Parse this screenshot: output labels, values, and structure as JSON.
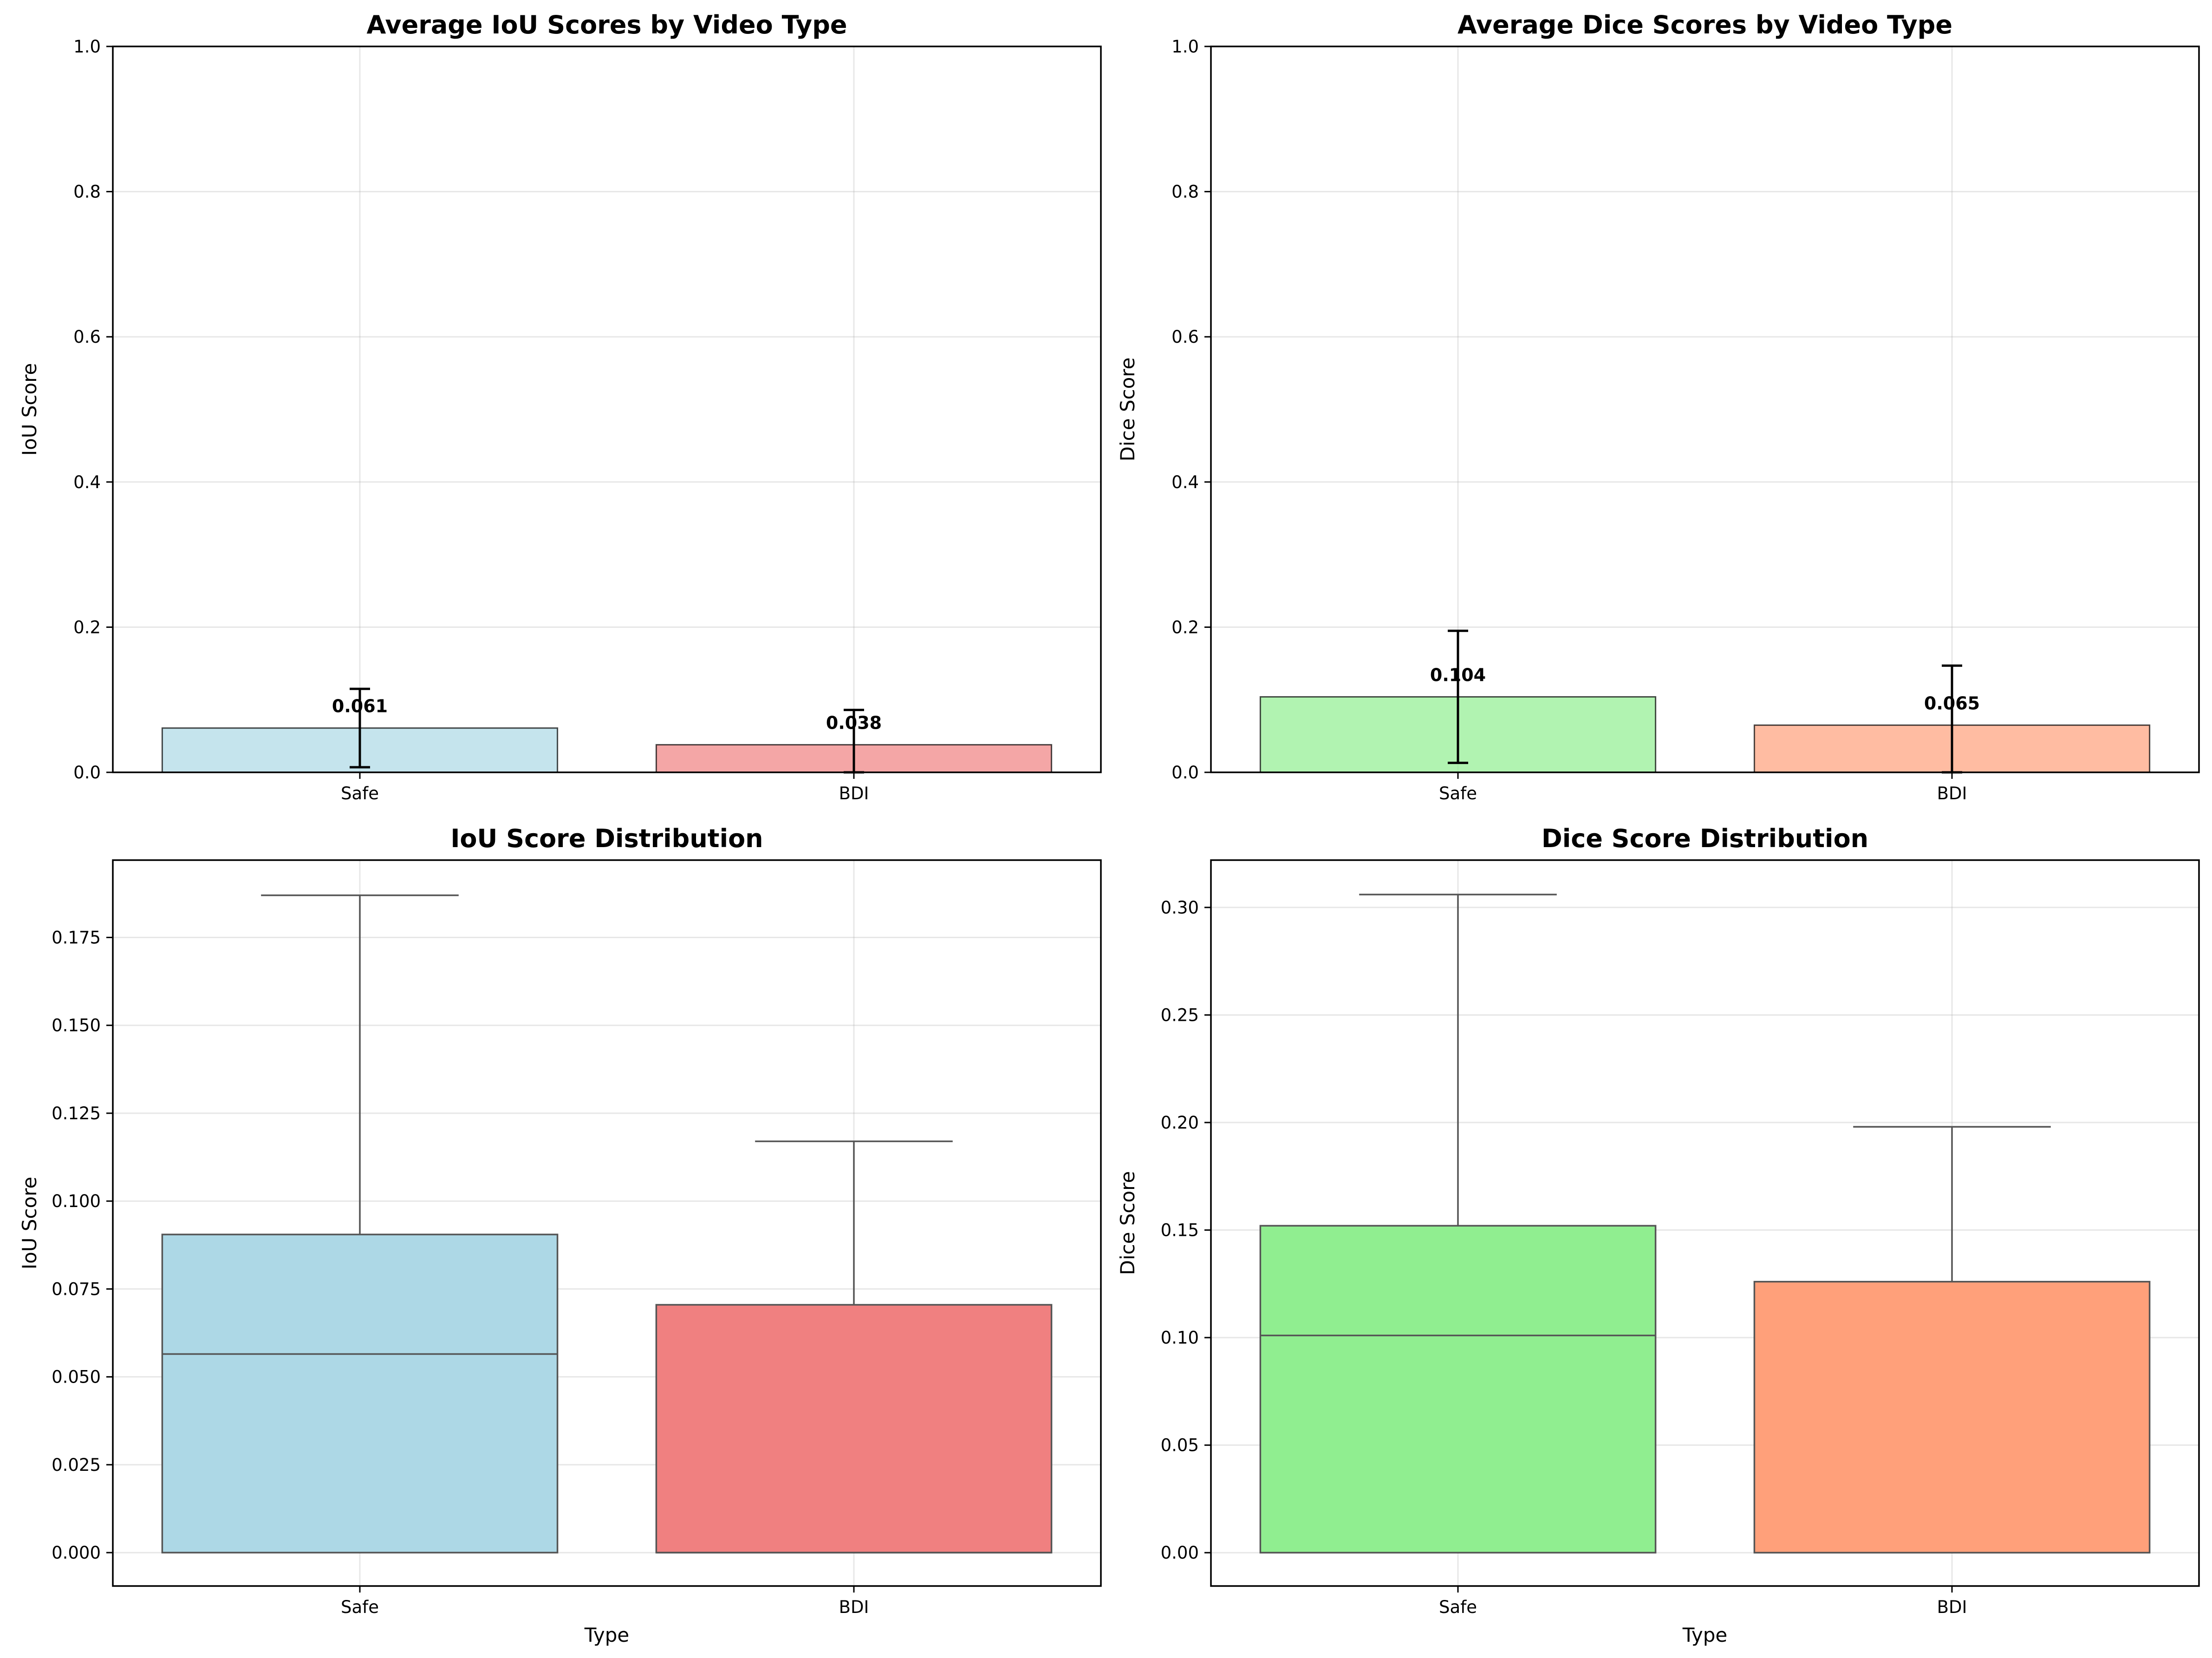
{
  "chart_data": [
    {
      "type": "bar",
      "title": "Average IoU Scores by Video Type",
      "xlabel": "",
      "ylabel": "IoU Score",
      "categories": [
        "Safe",
        "BDI"
      ],
      "values": [
        0.061,
        0.038
      ],
      "value_labels": [
        "0.061",
        "0.038"
      ],
      "error": [
        0.054,
        0.048
      ],
      "colors": [
        "#add8e6",
        "#f08080"
      ],
      "ylim": [
        0,
        1.0
      ],
      "yticks": [
        0.0,
        0.2,
        0.4,
        0.6,
        0.8,
        1.0
      ],
      "ytick_labels": [
        "0.0",
        "0.2",
        "0.4",
        "0.6",
        "0.8",
        "1.0"
      ],
      "grid": true
    },
    {
      "type": "bar",
      "title": "Average Dice Scores by Video Type",
      "xlabel": "",
      "ylabel": "Dice Score",
      "categories": [
        "Safe",
        "BDI"
      ],
      "values": [
        0.104,
        0.065
      ],
      "value_labels": [
        "0.104",
        "0.065"
      ],
      "error": [
        0.091,
        0.082
      ],
      "colors": [
        "#90ee90",
        "#ffa07a"
      ],
      "ylim": [
        0,
        1.0
      ],
      "yticks": [
        0.0,
        0.2,
        0.4,
        0.6,
        0.8,
        1.0
      ],
      "ytick_labels": [
        "0.0",
        "0.2",
        "0.4",
        "0.6",
        "0.8",
        "1.0"
      ],
      "grid": true
    },
    {
      "type": "box",
      "title": "IoU Score Distribution",
      "xlabel": "Type",
      "ylabel": "IoU Score",
      "categories": [
        "Safe",
        "BDI"
      ],
      "boxes": [
        {
          "min": 0.0,
          "q1": 0.0,
          "median": 0.0565,
          "q3": 0.0905,
          "max": 0.187
        },
        {
          "min": 0.0,
          "q1": 0.0,
          "median": 0.0,
          "q3": 0.0705,
          "max": 0.117
        }
      ],
      "colors": [
        "#add8e6",
        "#f08080"
      ],
      "ylim": [
        -0.0095,
        0.197
      ],
      "yticks": [
        0.0,
        0.025,
        0.05,
        0.075,
        0.1,
        0.125,
        0.15,
        0.175
      ],
      "ytick_labels": [
        "0.000",
        "0.025",
        "0.050",
        "0.075",
        "0.100",
        "0.125",
        "0.150",
        "0.175"
      ],
      "grid": true
    },
    {
      "type": "box",
      "title": "Dice Score Distribution",
      "xlabel": "Type",
      "ylabel": "Dice Score",
      "categories": [
        "Safe",
        "BDI"
      ],
      "boxes": [
        {
          "min": 0.0,
          "q1": 0.0,
          "median": 0.101,
          "q3": 0.152,
          "max": 0.306
        },
        {
          "min": 0.0,
          "q1": 0.0,
          "median": 0.0,
          "q3": 0.126,
          "max": 0.198
        }
      ],
      "colors": [
        "#90ee90",
        "#ffa07a"
      ],
      "ylim": [
        -0.0155,
        0.322
      ],
      "yticks": [
        0.0,
        0.05,
        0.1,
        0.15,
        0.2,
        0.25,
        0.3
      ],
      "ytick_labels": [
        "0.00",
        "0.05",
        "0.10",
        "0.15",
        "0.20",
        "0.25",
        "0.30"
      ],
      "grid": true
    }
  ]
}
